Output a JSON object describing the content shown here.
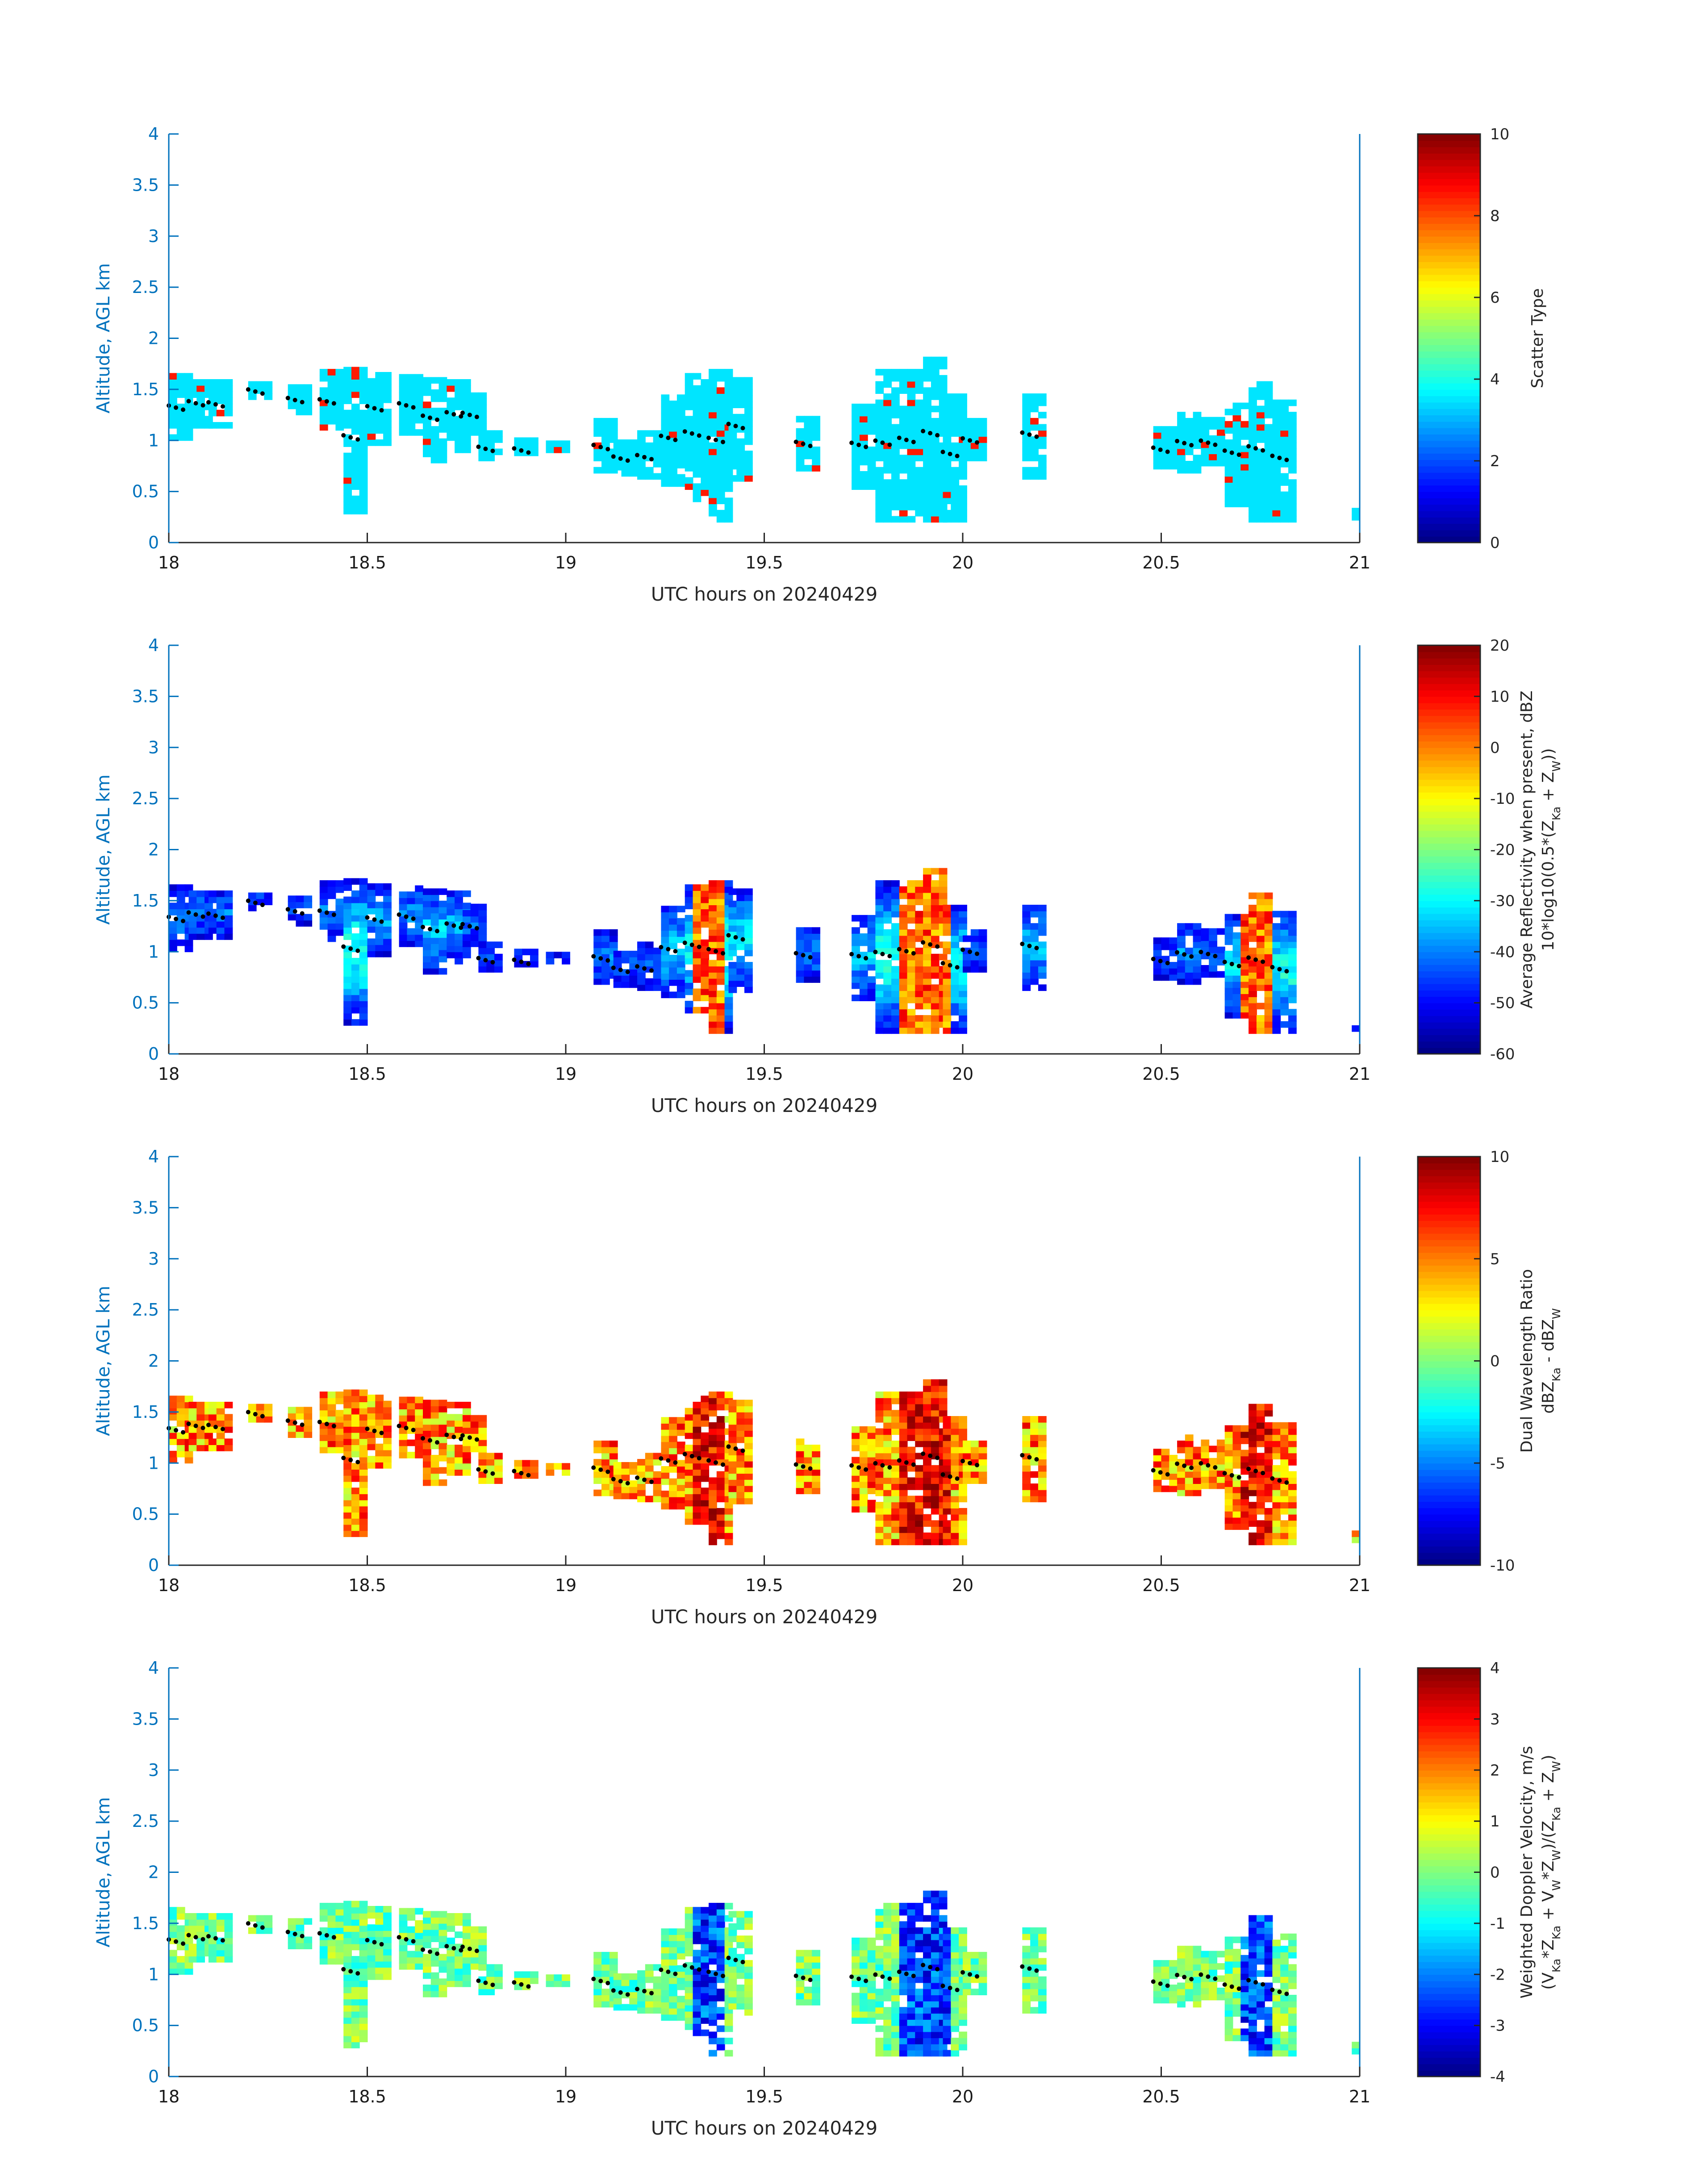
{
  "chart_data": [
    {
      "type": "heatmap",
      "xlabel": "UTC hours on 20240429",
      "ylabel": "Altitude, AGL km",
      "xlim": [
        18,
        21
      ],
      "ylim": [
        0,
        4
      ],
      "xticks": [
        "18",
        "18.5",
        "19",
        "19.5",
        "20",
        "20.5",
        "21"
      ],
      "yticks": [
        "0",
        "0.5",
        "1",
        "1.5",
        "2",
        "2.5",
        "3",
        "3.5",
        "4"
      ],
      "colorbar": {
        "label_lines": [
          "Scatter Type"
        ],
        "min": 0,
        "max": 10,
        "ticks": [
          "0",
          "2",
          "4",
          "6",
          "8",
          "10"
        ]
      },
      "dominant_value": 3.5,
      "notes": "Cloud-type field mostly value ~3.5 (cyan) with isolated ~8.5 pixels"
    },
    {
      "type": "heatmap",
      "xlabel": "UTC hours on 20240429",
      "ylabel": "Altitude, AGL km",
      "xlim": [
        18,
        21
      ],
      "ylim": [
        0,
        4
      ],
      "xticks": [
        "18",
        "18.5",
        "19",
        "19.5",
        "20",
        "20.5",
        "21"
      ],
      "yticks": [
        "0",
        "0.5",
        "1",
        "1.5",
        "2",
        "2.5",
        "3",
        "3.5",
        "4"
      ],
      "colorbar": {
        "label_lines": [
          "Average Reflectivity when present, dBZ",
          "10*log10(0.5*(Z_Ka + Z_W))"
        ],
        "min": -60,
        "max": 20,
        "ticks": [
          "-60",
          "-50",
          "-40",
          "-30",
          "-20",
          "-10",
          "0",
          "10",
          "20"
        ]
      },
      "notes": "Low reflectivity at cloud tops/edges, 0-15 dBZ in precip shafts near 19.35, 19.85-19.95 and 20.72 h"
    },
    {
      "type": "heatmap",
      "xlabel": "UTC hours on 20240429",
      "ylabel": "Altitude, AGL km",
      "xlim": [
        18,
        21
      ],
      "ylim": [
        0,
        4
      ],
      "xticks": [
        "18",
        "18.5",
        "19",
        "19.5",
        "20",
        "20.5",
        "21"
      ],
      "yticks": [
        "0",
        "0.5",
        "1",
        "1.5",
        "2",
        "2.5",
        "3",
        "3.5",
        "4"
      ],
      "colorbar": {
        "label_lines": [
          "Dual Wavelength Ratio",
          "dBZ_Ka - dBZ_W"
        ],
        "min": -10,
        "max": 10,
        "ticks": [
          "-10",
          "-5",
          "0",
          "5",
          "10"
        ]
      },
      "notes": "DWR mostly 2-8 dB, up to ~10 dB in shafts"
    },
    {
      "type": "heatmap",
      "xlabel": "UTC hours on 20240429",
      "ylabel": "Altitude, AGL km",
      "xlim": [
        18,
        21
      ],
      "ylim": [
        0,
        4
      ],
      "xticks": [
        "18",
        "18.5",
        "19",
        "19.5",
        "20",
        "20.5",
        "21"
      ],
      "yticks": [
        "0",
        "0.5",
        "1",
        "1.5",
        "2",
        "2.5",
        "3",
        "3.5",
        "4"
      ],
      "colorbar": {
        "label_lines": [
          "Weighted Doppler Velocity, m/s",
          "(V_Ka*Z_Ka + V_W*Z_W)/(Z_Ka + Z_W)"
        ],
        "min": -4,
        "max": 4,
        "ticks": [
          "-4",
          "-3",
          "-2",
          "-1",
          "0",
          "1",
          "2",
          "3",
          "4"
        ]
      },
      "notes": "Near 0 m/s in cloud, -1.5 to -3.5 m/s in precip shafts"
    }
  ],
  "cloud_segments": [
    [
      18.0,
      1.0,
      1.62
    ],
    [
      18.05,
      1.12,
      1.6
    ],
    [
      18.1,
      1.12,
      1.58
    ],
    [
      18.2,
      1.4,
      1.58
    ],
    [
      18.3,
      1.25,
      1.55
    ],
    [
      18.38,
      1.1,
      1.65
    ],
    [
      18.44,
      0.28,
      1.68
    ],
    [
      18.5,
      0.95,
      1.65
    ],
    [
      18.58,
      1.05,
      1.62
    ],
    [
      18.64,
      0.78,
      1.62
    ],
    [
      18.7,
      0.88,
      1.6
    ],
    [
      18.74,
      1.05,
      1.45
    ],
    [
      18.78,
      0.8,
      1.05
    ],
    [
      18.87,
      0.85,
      0.98
    ],
    [
      18.95,
      0.88,
      0.95
    ],
    [
      19.07,
      0.68,
      1.18
    ],
    [
      19.12,
      0.65,
      1.0
    ],
    [
      19.18,
      0.62,
      1.05
    ],
    [
      19.24,
      0.55,
      1.45
    ],
    [
      19.3,
      0.4,
      1.65
    ],
    [
      19.36,
      0.2,
      1.7
    ],
    [
      19.41,
      0.6,
      1.62
    ],
    [
      19.58,
      0.7,
      1.22
    ],
    [
      19.72,
      0.52,
      1.35
    ],
    [
      19.78,
      0.2,
      1.65
    ],
    [
      19.84,
      0.2,
      1.7
    ],
    [
      19.9,
      0.2,
      1.82
    ],
    [
      19.95,
      0.2,
      1.45
    ],
    [
      20.0,
      0.8,
      1.2
    ],
    [
      20.15,
      0.62,
      1.45
    ],
    [
      20.48,
      0.72,
      1.1
    ],
    [
      20.54,
      0.68,
      1.25
    ],
    [
      20.6,
      0.75,
      1.2
    ],
    [
      20.66,
      0.35,
      1.35
    ],
    [
      20.72,
      0.2,
      1.55
    ],
    [
      20.78,
      0.2,
      1.38
    ],
    [
      20.98,
      0.22,
      0.3
    ]
  ]
}
